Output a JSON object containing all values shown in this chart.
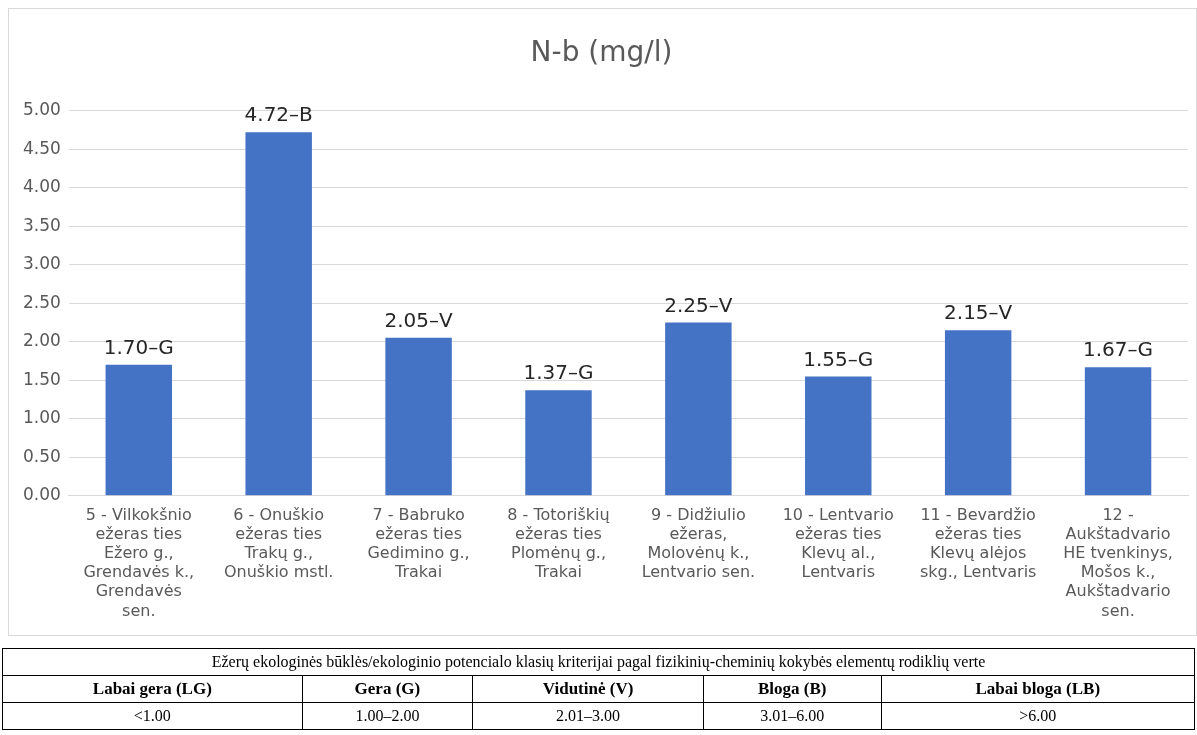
{
  "chart_data": {
    "type": "bar",
    "title": "N-b (mg/l)",
    "categories": [
      "5 - Vilkokšnio ežeras ties Ežero g., Grendavės k., Grendavės sen.",
      "6 - Onuškio ežeras ties Trakų g., Onuškio mstl.",
      "7 - Babruko ežeras ties Gedimino g., Trakai",
      "8 - Totoriškių ežeras ties Plomėnų g., Trakai",
      "9 - Didžiulio ežeras, Molovėnų k., Lentvario sen.",
      "10 - Lentvario ežeras ties Klevų al., Lentvaris",
      "11 - Bevardžio ežeras ties Klevų alėjos skg., Lentvaris",
      "12 - Aukštadvario HE tvenkinys, Mošos k., Aukštadvario sen."
    ],
    "values": [
      1.7,
      4.72,
      2.05,
      1.37,
      2.25,
      1.55,
      2.15,
      1.67
    ],
    "value_labels": [
      "1.70–G",
      "4.72–B",
      "2.05–V",
      "1.37–G",
      "2.25–V",
      "1.55–G",
      "2.15–V",
      "1.67–G"
    ],
    "color": "#4472c4",
    "ylim": [
      0,
      5
    ],
    "yticks": [
      {
        "value": 0,
        "label": "0.00"
      },
      {
        "value": 0.5,
        "label": "0.50"
      },
      {
        "value": 1,
        "label": "1.00"
      },
      {
        "value": 1.5,
        "label": "1.50"
      },
      {
        "value": 2,
        "label": "2.00"
      },
      {
        "value": 2.5,
        "label": "2.50"
      },
      {
        "value": 3,
        "label": "3.00"
      },
      {
        "value": 3.5,
        "label": "3.50"
      },
      {
        "value": 4,
        "label": "4.00"
      },
      {
        "value": 4.5,
        "label": "4.50"
      },
      {
        "value": 5,
        "label": "5.00"
      }
    ],
    "grid": "y",
    "annotations": [
      "Ežerų ekologinės būklės/ekologinio potencialo  klasių kriterijai pagal fizikinių-cheminių kokybės elementų rodiklių verte",
      "Labai gera (LG)",
      "Gera (G)",
      "Vidutinė (V)",
      "Bloga (B)",
      "Labai bloga (LB)",
      "<1.00",
      "1.00–2.00",
      "2.01–3.00",
      "3.01–6.00",
      ">6.00"
    ]
  }
}
